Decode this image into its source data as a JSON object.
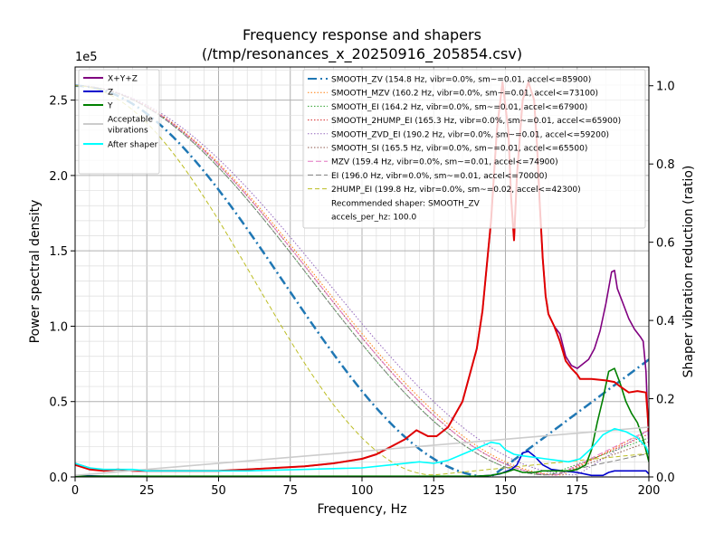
{
  "chart_data": {
    "type": "line",
    "title": "Frequency response and shapers",
    "subtitle": "(/tmp/resonances_x_20250916_205854.csv)",
    "xlabel": "Frequency, Hz",
    "ylabel": "Power spectral density",
    "y2label": "Shaper vibration reduction (ratio)",
    "y_offset_text": "1e5",
    "xlim": [
      0,
      200
    ],
    "ylim": [
      0,
      2.72
    ],
    "y2lim": [
      0,
      1.048
    ],
    "x_ticks": [
      0,
      25,
      50,
      75,
      100,
      125,
      150,
      175,
      200
    ],
    "y_ticks": [
      0.0,
      0.5,
      1.0,
      1.5,
      2.0,
      2.5
    ],
    "y2_ticks": [
      0.0,
      0.2,
      0.4,
      0.6,
      0.8,
      1.0
    ],
    "grid": "major and minor",
    "psd_legend_placement": "upper-left",
    "shaper_legend_placement": "upper-right",
    "psd_series": [
      {
        "name": "X+Y+Z",
        "color": "#800080",
        "width": 1.6,
        "points": [
          [
            0,
            0.09
          ],
          [
            5,
            0.06
          ],
          [
            10,
            0.04
          ],
          [
            15,
            0.05
          ],
          [
            20,
            0.04
          ],
          [
            25,
            0.04
          ],
          [
            30,
            0.04
          ],
          [
            40,
            0.04
          ],
          [
            50,
            0.04
          ],
          [
            60,
            0.05
          ],
          [
            70,
            0.06
          ],
          [
            80,
            0.07
          ],
          [
            90,
            0.09
          ],
          [
            100,
            0.12
          ],
          [
            105,
            0.15
          ],
          [
            110,
            0.2
          ],
          [
            115,
            0.25
          ],
          [
            119,
            0.31
          ],
          [
            123,
            0.27
          ],
          [
            126,
            0.27
          ],
          [
            130,
            0.33
          ],
          [
            135,
            0.5
          ],
          [
            140,
            0.85
          ],
          [
            142,
            1.1
          ],
          [
            145,
            1.7
          ],
          [
            147,
            2.3
          ],
          [
            149,
            2.62
          ],
          [
            151,
            2.3
          ],
          [
            152,
            1.85
          ],
          [
            153,
            1.57
          ],
          [
            154,
            2.0
          ],
          [
            156,
            2.5
          ],
          [
            158,
            2.62
          ],
          [
            160,
            2.5
          ],
          [
            161,
            2.2
          ],
          [
            162,
            1.8
          ],
          [
            163,
            1.45
          ],
          [
            164,
            1.2
          ],
          [
            165,
            1.08
          ],
          [
            167,
            1.0
          ],
          [
            169,
            0.95
          ],
          [
            171,
            0.8
          ],
          [
            173,
            0.74
          ],
          [
            175,
            0.72
          ],
          [
            177,
            0.75
          ],
          [
            179,
            0.78
          ],
          [
            181,
            0.85
          ],
          [
            183,
            0.97
          ],
          [
            185,
            1.15
          ],
          [
            187,
            1.36
          ],
          [
            188,
            1.37
          ],
          [
            189,
            1.25
          ],
          [
            191,
            1.15
          ],
          [
            193,
            1.05
          ],
          [
            195,
            0.98
          ],
          [
            197,
            0.93
          ],
          [
            198,
            0.9
          ],
          [
            199,
            0.7
          ],
          [
            200,
            0.2
          ]
        ]
      },
      {
        "name": "Z",
        "color": "#0000cc",
        "width": 1.6,
        "points": [
          [
            0,
            0.01
          ],
          [
            10,
            0.005
          ],
          [
            20,
            0.005
          ],
          [
            40,
            0.003
          ],
          [
            60,
            0.003
          ],
          [
            80,
            0.003
          ],
          [
            100,
            0.003
          ],
          [
            120,
            0.003
          ],
          [
            140,
            0.005
          ],
          [
            145,
            0.01
          ],
          [
            148,
            0.02
          ],
          [
            150,
            0.035
          ],
          [
            152,
            0.05
          ],
          [
            154,
            0.08
          ],
          [
            156,
            0.16
          ],
          [
            158,
            0.17
          ],
          [
            160,
            0.14
          ],
          [
            163,
            0.08
          ],
          [
            166,
            0.05
          ],
          [
            170,
            0.04
          ],
          [
            175,
            0.03
          ],
          [
            180,
            0.01
          ],
          [
            184,
            0.01
          ],
          [
            186,
            0.03
          ],
          [
            188,
            0.04
          ],
          [
            190,
            0.04
          ],
          [
            193,
            0.04
          ],
          [
            196,
            0.04
          ],
          [
            199,
            0.04
          ],
          [
            200,
            0.02
          ]
        ]
      },
      {
        "name": "Y",
        "color": "#008000",
        "width": 1.6,
        "points": [
          [
            0,
            0.005
          ],
          [
            20,
            0.005
          ],
          [
            50,
            0.005
          ],
          [
            80,
            0.005
          ],
          [
            110,
            0.005
          ],
          [
            130,
            0.005
          ],
          [
            140,
            0.005
          ],
          [
            145,
            0.01
          ],
          [
            150,
            0.03
          ],
          [
            153,
            0.05
          ],
          [
            156,
            0.03
          ],
          [
            160,
            0.03
          ],
          [
            163,
            0.04
          ],
          [
            166,
            0.04
          ],
          [
            170,
            0.04
          ],
          [
            173,
            0.04
          ],
          [
            175,
            0.05
          ],
          [
            178,
            0.08
          ],
          [
            180,
            0.18
          ],
          [
            182,
            0.36
          ],
          [
            184,
            0.52
          ],
          [
            186,
            0.7
          ],
          [
            188,
            0.72
          ],
          [
            190,
            0.62
          ],
          [
            192,
            0.5
          ],
          [
            194,
            0.42
          ],
          [
            196,
            0.36
          ],
          [
            198,
            0.25
          ],
          [
            200,
            0.1
          ]
        ]
      },
      {
        "name": "",
        "color": "#e00000",
        "width": 2,
        "points": [
          [
            0,
            0.08
          ],
          [
            5,
            0.05
          ],
          [
            10,
            0.04
          ],
          [
            15,
            0.05
          ],
          [
            20,
            0.04
          ],
          [
            25,
            0.04
          ],
          [
            30,
            0.04
          ],
          [
            40,
            0.04
          ],
          [
            50,
            0.04
          ],
          [
            60,
            0.05
          ],
          [
            70,
            0.06
          ],
          [
            80,
            0.07
          ],
          [
            90,
            0.09
          ],
          [
            100,
            0.12
          ],
          [
            105,
            0.15
          ],
          [
            110,
            0.2
          ],
          [
            115,
            0.25
          ],
          [
            119,
            0.31
          ],
          [
            123,
            0.27
          ],
          [
            126,
            0.27
          ],
          [
            130,
            0.33
          ],
          [
            135,
            0.5
          ],
          [
            140,
            0.85
          ],
          [
            142,
            1.1
          ],
          [
            145,
            1.7
          ],
          [
            147,
            2.3
          ],
          [
            149,
            2.62
          ],
          [
            151,
            2.3
          ],
          [
            152,
            1.85
          ],
          [
            153,
            1.57
          ],
          [
            154,
            2.0
          ],
          [
            156,
            2.5
          ],
          [
            158,
            2.62
          ],
          [
            160,
            2.5
          ],
          [
            161,
            2.2
          ],
          [
            162,
            1.8
          ],
          [
            163,
            1.45
          ],
          [
            164,
            1.2
          ],
          [
            165,
            1.08
          ],
          [
            167,
            1.0
          ],
          [
            169,
            0.9
          ],
          [
            171,
            0.77
          ],
          [
            173,
            0.72
          ],
          [
            175,
            0.68
          ],
          [
            176,
            0.65
          ],
          [
            180,
            0.65
          ],
          [
            185,
            0.64
          ],
          [
            188,
            0.63
          ],
          [
            190,
            0.6
          ],
          [
            193,
            0.56
          ],
          [
            196,
            0.57
          ],
          [
            199,
            0.56
          ],
          [
            200,
            0.3
          ]
        ]
      },
      {
        "name": "Acceptable vibrations",
        "color": "#cccccc",
        "width": 1.6,
        "points": [
          [
            0,
            0.01
          ],
          [
            200,
            0.33
          ]
        ]
      },
      {
        "name": "After shaper",
        "color": "#00ffff",
        "width": 1.6,
        "points": [
          [
            0,
            0.09
          ],
          [
            5,
            0.06
          ],
          [
            10,
            0.05
          ],
          [
            15,
            0.05
          ],
          [
            20,
            0.05
          ],
          [
            25,
            0.04
          ],
          [
            40,
            0.04
          ],
          [
            60,
            0.04
          ],
          [
            80,
            0.05
          ],
          [
            100,
            0.06
          ],
          [
            110,
            0.08
          ],
          [
            120,
            0.1
          ],
          [
            125,
            0.09
          ],
          [
            130,
            0.11
          ],
          [
            135,
            0.15
          ],
          [
            140,
            0.19
          ],
          [
            145,
            0.23
          ],
          [
            148,
            0.22
          ],
          [
            150,
            0.18
          ],
          [
            153,
            0.15
          ],
          [
            156,
            0.14
          ],
          [
            160,
            0.13
          ],
          [
            164,
            0.12
          ],
          [
            168,
            0.11
          ],
          [
            172,
            0.1
          ],
          [
            176,
            0.12
          ],
          [
            180,
            0.19
          ],
          [
            184,
            0.28
          ],
          [
            188,
            0.32
          ],
          [
            192,
            0.3
          ],
          [
            196,
            0.26
          ],
          [
            199,
            0.2
          ],
          [
            200,
            0.15
          ]
        ]
      }
    ],
    "shaper_series": [
      {
        "name": "SMOOTH_ZV (154.8 Hz, vibr=0.0%, sm~=0.01, accel<=85900)",
        "color": "#1f77b4",
        "dash": "10,4,2,4",
        "width": 2.5,
        "fc": 154.8,
        "y0": 1.0,
        "bottom": 145,
        "ymin": 0.0,
        "yend": 0.3
      },
      {
        "name": "SMOOTH_MZV (160.2 Hz, vibr=0.0%, sm~=0.01, accel<=73100)",
        "color": "#ff7f0e",
        "dash": "1.5,2",
        "width": 1,
        "fc": 160.2,
        "y0": 1.0,
        "bottom": 170,
        "ymin": 0.005,
        "yend": 0.12
      },
      {
        "name": "SMOOTH_EI (164.2 Hz, vibr=0.0%, sm~=0.01, accel<=67900)",
        "color": "#2ca02c",
        "dash": "1.5,2",
        "width": 1,
        "fc": 164.2,
        "y0": 1.0,
        "bottom": 165,
        "ymin": 0.005,
        "yend": 0.1
      },
      {
        "name": "SMOOTH_2HUMP_EI (165.3 Hz, vibr=0.0%, sm~=0.01, accel<=65900)",
        "color": "#d62728",
        "dash": "1.5,2",
        "width": 1,
        "fc": 165.3,
        "y0": 1.0,
        "bottom": 168,
        "ymin": 0.005,
        "yend": 0.11
      },
      {
        "name": "SMOOTH_ZVD_EI (190.2 Hz, vibr=0.0%, sm~=0.01, accel<=59200)",
        "color": "#9467bd",
        "dash": "1.5,2",
        "width": 1,
        "fc": 190.2,
        "y0": 1.0,
        "bottom": 175,
        "ymin": 0.005,
        "yend": 0.12
      },
      {
        "name": "SMOOTH_SI (165.5 Hz, vibr=0.0%, sm~=0.01, accel<=65500)",
        "color": "#8c564b",
        "dash": "1.5,2",
        "width": 1,
        "fc": 165.5,
        "y0": 1.0,
        "bottom": 168,
        "ymin": 0.005,
        "yend": 0.09
      },
      {
        "name": "MZV (159.4 Hz, vibr=0.0%, sm~=0.01, accel<=74900)",
        "color": "#e377c2",
        "dash": "6,3",
        "width": 1,
        "fc": 159.4,
        "y0": 1.0,
        "bottom": 168,
        "ymin": 0.005,
        "yend": 0.12
      },
      {
        "name": "EI (196.0 Hz, vibr=0.0%, sm~=0.01, accel<=70000)",
        "color": "#7f7f7f",
        "dash": "6,3",
        "width": 1,
        "fc": 196.0,
        "y0": 1.0,
        "bottom": 165,
        "ymin": 0.005,
        "yend": 0.06
      },
      {
        "name": "2HUMP_EI (199.8 Hz, vibr=0.0%, sm~=0.02, accel<=42300)",
        "color": "#bcbd22",
        "dash": "5,3",
        "width": 1,
        "fc": 199.8,
        "y0": 1.0,
        "bottom": 125,
        "ymin": 0.005,
        "yend": 0.06
      }
    ],
    "legend_notes": [
      "Recommended shaper: SMOOTH_ZV",
      "accels_per_hz: 100.0"
    ]
  }
}
